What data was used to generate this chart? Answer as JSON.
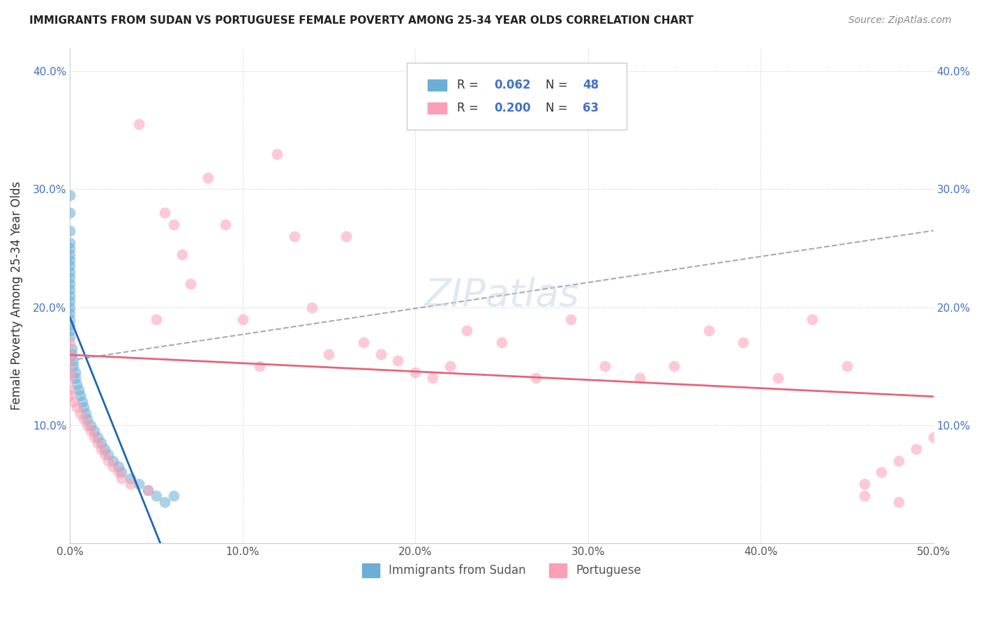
{
  "title": "IMMIGRANTS FROM SUDAN VS PORTUGUESE FEMALE POVERTY AMONG 25-34 YEAR OLDS CORRELATION CHART",
  "source": "Source: ZipAtlas.com",
  "ylabel": "Female Poverty Among 25-34 Year Olds",
  "xlim": [
    0,
    0.5
  ],
  "ylim": [
    0,
    0.42
  ],
  "color_blue": "#6baed6",
  "color_pink": "#fa9fb5",
  "color_blue_line": "#2166ac",
  "color_pink_line": "#e8637a",
  "color_gray_line": "#aaaaaa",
  "legend_r1": "0.062",
  "legend_n1": "48",
  "legend_r2": "0.200",
  "legend_n2": "63",
  "sudan_x": [
    0.0,
    0.0,
    0.0,
    0.0,
    0.0,
    0.0,
    0.0,
    0.0,
    0.0,
    0.0,
    0.0,
    0.0,
    0.0,
    0.0,
    0.0,
    0.0,
    0.0,
    0.0,
    0.0,
    0.0,
    0.001,
    0.001,
    0.002,
    0.002,
    0.003,
    0.003,
    0.004,
    0.005,
    0.006,
    0.007,
    0.008,
    0.009,
    0.01,
    0.012,
    0.014,
    0.016,
    0.018,
    0.02,
    0.022,
    0.025,
    0.028,
    0.03,
    0.035,
    0.04,
    0.045,
    0.05,
    0.055,
    0.06
  ],
  "sudan_y": [
    0.295,
    0.28,
    0.265,
    0.255,
    0.25,
    0.245,
    0.24,
    0.235,
    0.23,
    0.225,
    0.22,
    0.215,
    0.21,
    0.205,
    0.2,
    0.195,
    0.19,
    0.185,
    0.18,
    0.175,
    0.165,
    0.16,
    0.155,
    0.15,
    0.145,
    0.14,
    0.135,
    0.13,
    0.125,
    0.12,
    0.115,
    0.11,
    0.105,
    0.1,
    0.095,
    0.09,
    0.085,
    0.08,
    0.075,
    0.07,
    0.065,
    0.06,
    0.055,
    0.05,
    0.045,
    0.04,
    0.035,
    0.04
  ],
  "port_x": [
    0.0,
    0.0,
    0.0,
    0.0,
    0.0,
    0.0,
    0.0,
    0.002,
    0.004,
    0.006,
    0.008,
    0.01,
    0.012,
    0.014,
    0.016,
    0.018,
    0.02,
    0.022,
    0.025,
    0.028,
    0.03,
    0.035,
    0.04,
    0.045,
    0.05,
    0.055,
    0.06,
    0.065,
    0.07,
    0.08,
    0.09,
    0.1,
    0.11,
    0.12,
    0.13,
    0.14,
    0.15,
    0.16,
    0.17,
    0.18,
    0.19,
    0.2,
    0.21,
    0.22,
    0.23,
    0.25,
    0.27,
    0.29,
    0.31,
    0.33,
    0.35,
    0.37,
    0.39,
    0.41,
    0.43,
    0.45,
    0.46,
    0.47,
    0.48,
    0.49,
    0.5,
    0.48,
    0.46
  ],
  "port_y": [
    0.17,
    0.16,
    0.155,
    0.145,
    0.14,
    0.13,
    0.125,
    0.12,
    0.115,
    0.11,
    0.105,
    0.1,
    0.095,
    0.09,
    0.085,
    0.08,
    0.075,
    0.07,
    0.065,
    0.06,
    0.055,
    0.05,
    0.355,
    0.045,
    0.19,
    0.28,
    0.27,
    0.245,
    0.22,
    0.31,
    0.27,
    0.19,
    0.15,
    0.33,
    0.26,
    0.2,
    0.16,
    0.26,
    0.17,
    0.16,
    0.155,
    0.145,
    0.14,
    0.15,
    0.18,
    0.17,
    0.14,
    0.19,
    0.15,
    0.14,
    0.15,
    0.18,
    0.17,
    0.14,
    0.19,
    0.15,
    0.05,
    0.06,
    0.07,
    0.08,
    0.09,
    0.035,
    0.04
  ]
}
